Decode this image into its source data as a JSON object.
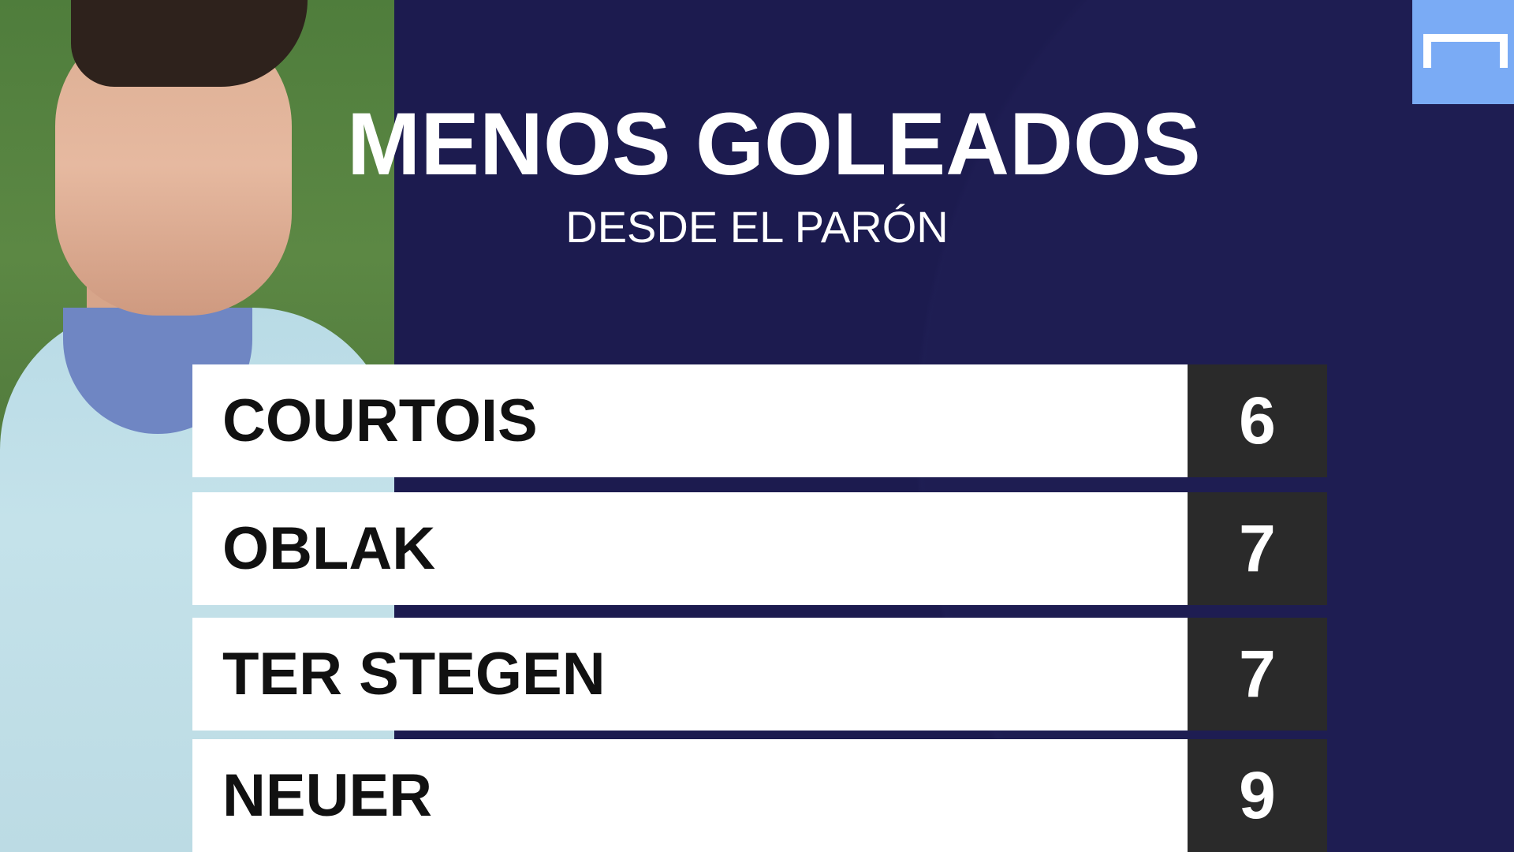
{
  "header": {
    "title": "MENOS GOLEADOS",
    "subtitle": "DESDE EL PARÓN"
  },
  "ranking": [
    {
      "name": "COURTOIS",
      "value": "6"
    },
    {
      "name": "OBLAK",
      "value": "7"
    },
    {
      "name": "TER STEGEN",
      "value": "7"
    },
    {
      "name": "NEUER",
      "value": "9"
    }
  ],
  "colors": {
    "background": "#1c1b4f",
    "row_background": "#ffffff",
    "value_background": "#2a2a2a",
    "logo_background": "#7aabf5"
  },
  "logo": {
    "icon": "goal-icon"
  }
}
